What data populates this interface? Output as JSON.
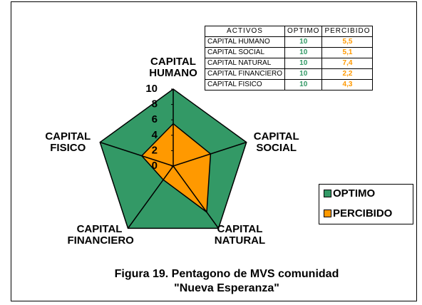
{
  "chart_data": {
    "type": "radar",
    "title": "Figura 19. Pentagono de MVS comunidad \"Nueva  Esperanza\"",
    "categories": [
      "CAPITAL HUMANO",
      "CAPITAL SOCIAL",
      "CAPITAL NATURAL",
      "CAPITAL FINANCIERO",
      "CAPITAL FISICO"
    ],
    "series": [
      {
        "name": "OPTIMO",
        "color": "#339966",
        "values": [
          10,
          10,
          10,
          10,
          10
        ]
      },
      {
        "name": "PERCIBIDO",
        "color": "#ff9900",
        "values": [
          5.5,
          5.1,
          7.4,
          2.2,
          4.3
        ],
        "value_labels": [
          "5,5",
          "5,1",
          "7,4",
          "2,2",
          "4,3"
        ]
      }
    ],
    "rlim": [
      0,
      10
    ],
    "rticks": [
      0,
      2,
      4,
      6,
      8,
      10
    ],
    "table": {
      "headers": [
        "ACTIVOS",
        "OPTIMO",
        "PERCIBIDO"
      ]
    },
    "legend": "right"
  }
}
